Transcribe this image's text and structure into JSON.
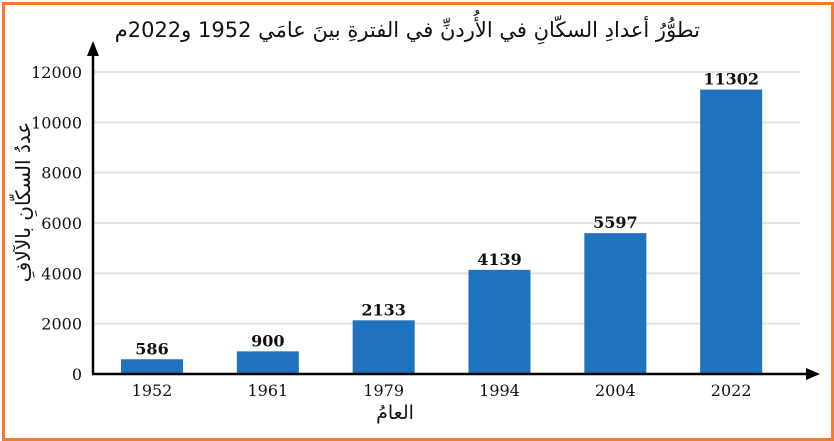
{
  "chart_data": {
    "type": "bar",
    "title": "تطوُّرُ أعدادِ السكّانِ في الأُردنِّ في الفترةِ بينَ عامَي 1952 و2022م",
    "xlabel": "العامُ",
    "ylabel": "عددُ السكّانِ بالآلافِ",
    "categories": [
      "1952",
      "1961",
      "1979",
      "1994",
      "2004",
      "2022"
    ],
    "values": [
      586,
      900,
      2133,
      4139,
      5597,
      11302
    ],
    "data_labels": [
      "586",
      "900",
      "2133",
      "4139",
      "5597",
      "11302"
    ],
    "ylim": [
      0,
      12000
    ],
    "yticks": [
      "0",
      "2000",
      "4000",
      "6000",
      "8000",
      "10000",
      "12000"
    ],
    "grid": true,
    "legend": null,
    "colors": {
      "bar": "#1F72BD",
      "frame": "#ED7D31",
      "grid": "#E3E3E3",
      "axis": "#000000"
    }
  }
}
